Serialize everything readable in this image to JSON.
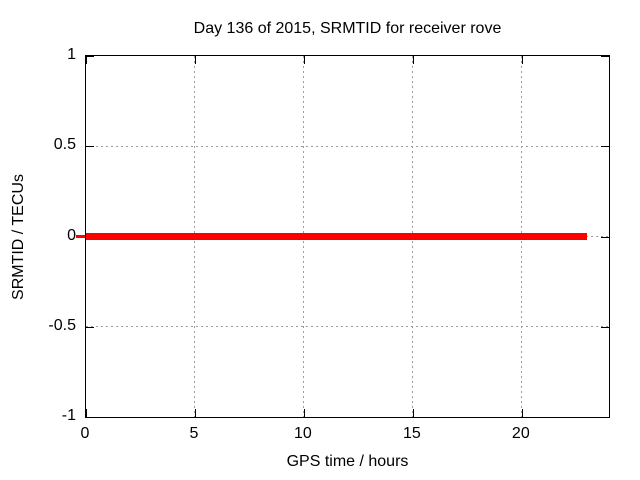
{
  "chart_data": {
    "type": "line",
    "title": "Day 136 of 2015, SRMTID for receiver rove",
    "xlabel": "GPS time / hours",
    "ylabel": "SRMTID / TECUs",
    "xlim": [
      0,
      24
    ],
    "ylim": [
      -1,
      1
    ],
    "x_ticks": [
      0,
      5,
      10,
      15,
      20
    ],
    "x_tick_labels": [
      "0",
      "5",
      "10",
      "15",
      "20"
    ],
    "y_ticks": [
      1,
      0.5,
      0,
      -0.5,
      -1
    ],
    "y_tick_labels": [
      "1",
      "0.5",
      "0",
      "-0.5",
      "-1"
    ],
    "grid": "dotted",
    "legend_position": "none",
    "series": [
      {
        "name": "SRMTID",
        "color": "#ff0000",
        "stroke_px": 7,
        "x": [
          0,
          23
        ],
        "y": [
          0,
          0
        ]
      }
    ],
    "colors": {
      "line": "#ff0000",
      "grid": "#9c9c9c",
      "axis": "#000000",
      "background": "#ffffff",
      "text": "#000000"
    }
  }
}
